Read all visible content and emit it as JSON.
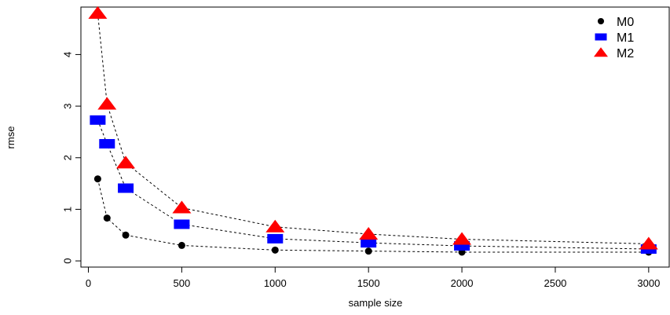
{
  "chart_data": {
    "type": "line",
    "xlabel": "sample size",
    "ylabel": "rmse",
    "xlim": [
      -40,
      3110
    ],
    "ylim": [
      -0.12,
      4.92
    ],
    "x_ticks": [
      0,
      500,
      1000,
      1500,
      2000,
      2500,
      3000
    ],
    "y_ticks": [
      0,
      1,
      2,
      3,
      4
    ],
    "grid": false,
    "legend_position": "top-right",
    "x": [
      50,
      100,
      200,
      500,
      1000,
      1500,
      2000,
      3000
    ],
    "series": [
      {
        "name": "M0",
        "marker": "circle",
        "color": "#000000",
        "values": [
          1.59,
          0.83,
          0.5,
          0.3,
          0.21,
          0.19,
          0.17,
          0.17
        ]
      },
      {
        "name": "M1",
        "marker": "square",
        "color": "#0000ff",
        "values": [
          2.73,
          2.27,
          1.41,
          0.71,
          0.43,
          0.35,
          0.29,
          0.23
        ]
      },
      {
        "name": "M2",
        "marker": "triangle",
        "color": "#ff0000",
        "values": [
          4.8,
          3.04,
          1.9,
          1.03,
          0.66,
          0.52,
          0.42,
          0.33
        ]
      }
    ]
  }
}
